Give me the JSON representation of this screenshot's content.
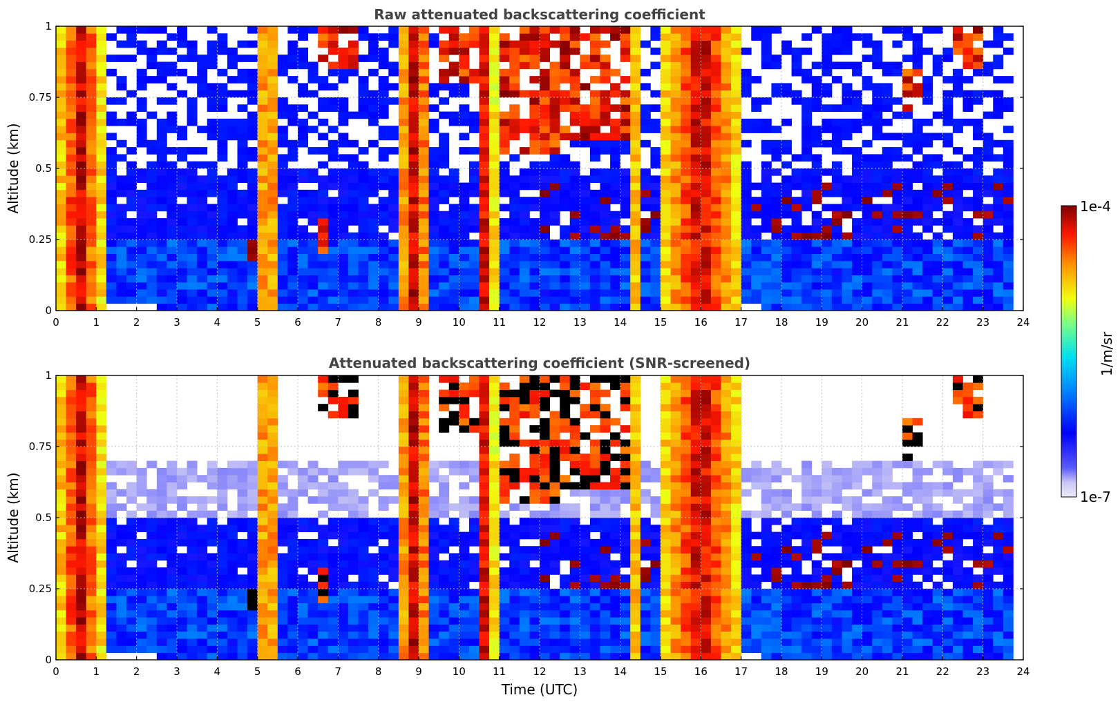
{
  "chart_data": [
    {
      "type": "heatmap",
      "title": "Raw attenuated backscattering coefficient",
      "xlabel": "",
      "ylabel": "Altitude (km)",
      "xlim": [
        0,
        24
      ],
      "ylim": [
        0,
        1
      ],
      "x_ticks": [
        "0",
        "1",
        "2",
        "3",
        "4",
        "5",
        "6",
        "7",
        "8",
        "9",
        "10",
        "11",
        "12",
        "13",
        "14",
        "15",
        "16",
        "17",
        "18",
        "19",
        "20",
        "21",
        "22",
        "23",
        "24"
      ],
      "y_ticks": [
        "0",
        "0.25",
        "0.5",
        "0.75",
        "1"
      ],
      "y_tick_values": [
        0,
        0.25,
        0.5,
        0.75,
        1
      ],
      "grid": true,
      "screened": false,
      "column_levels": [
        {
          "t_start": 0.0,
          "t_end": 1.2,
          "level": 0.85,
          "top": 1.0
        },
        {
          "t_start": 1.2,
          "t_end": 2.5,
          "level": 0.25,
          "top": 0.25
        },
        {
          "t_start": 2.6,
          "t_end": 4.8,
          "level": 0.22,
          "top": 0.25
        },
        {
          "t_start": 5.0,
          "t_end": 5.5,
          "level": 0.7,
          "top": 1.0
        },
        {
          "t_start": 5.5,
          "t_end": 6.8,
          "level": 0.22,
          "top": 0.25
        },
        {
          "t_start": 6.8,
          "t_end": 8.2,
          "level": 0.2,
          "top": 0.25
        },
        {
          "t_start": 8.4,
          "t_end": 9.4,
          "level": 0.88,
          "top": 1.0
        },
        {
          "t_start": 9.4,
          "t_end": 10.5,
          "level": 0.3,
          "top": 0.35
        },
        {
          "t_start": 10.5,
          "t_end": 11.0,
          "level": 0.65,
          "top": 1.0
        },
        {
          "t_start": 11.0,
          "t_end": 12.3,
          "level": 0.5,
          "top": 1.0
        },
        {
          "t_start": 12.3,
          "t_end": 14.3,
          "level": 0.25,
          "top": 0.45
        },
        {
          "t_start": 14.3,
          "t_end": 14.9,
          "level": 0.6,
          "top": 1.0
        },
        {
          "t_start": 14.9,
          "t_end": 17.1,
          "level": 0.85,
          "top": 1.0
        },
        {
          "t_start": 17.1,
          "t_end": 23.8,
          "level": 0.22,
          "top": 0.3
        }
      ],
      "colorbar": {
        "min_label": "1e-7",
        "max_label": "1e-4",
        "label": "1/m/sr",
        "scale": "log",
        "colormap": "jet",
        "min": 1e-07,
        "max": 0.0001
      }
    },
    {
      "type": "heatmap",
      "title": "Attenuated backscattering coefficient (SNR-screened)",
      "xlabel": "Time (UTC)",
      "ylabel": "Altitude (km)",
      "xlim": [
        0,
        24
      ],
      "ylim": [
        0,
        1
      ],
      "x_ticks": [
        "0",
        "1",
        "2",
        "3",
        "4",
        "5",
        "6",
        "7",
        "8",
        "9",
        "10",
        "11",
        "12",
        "13",
        "14",
        "15",
        "16",
        "17",
        "18",
        "19",
        "20",
        "21",
        "22",
        "23",
        "24"
      ],
      "y_ticks": [
        "0",
        "0.25",
        "0.5",
        "0.75",
        "1"
      ],
      "y_tick_values": [
        0,
        0.25,
        0.5,
        0.75,
        1
      ],
      "grid": true,
      "screened": true,
      "saturated_color": "#000000",
      "colorbar": {
        "min_label": "1e-7",
        "max_label": "1e-4",
        "label": "1/m/sr",
        "scale": "log",
        "colormap": "jet",
        "min": 1e-07,
        "max": 0.0001
      }
    }
  ],
  "colorbar": {
    "max_label": "1e-4",
    "min_label": "1e-7",
    "label": "1/m/sr"
  }
}
